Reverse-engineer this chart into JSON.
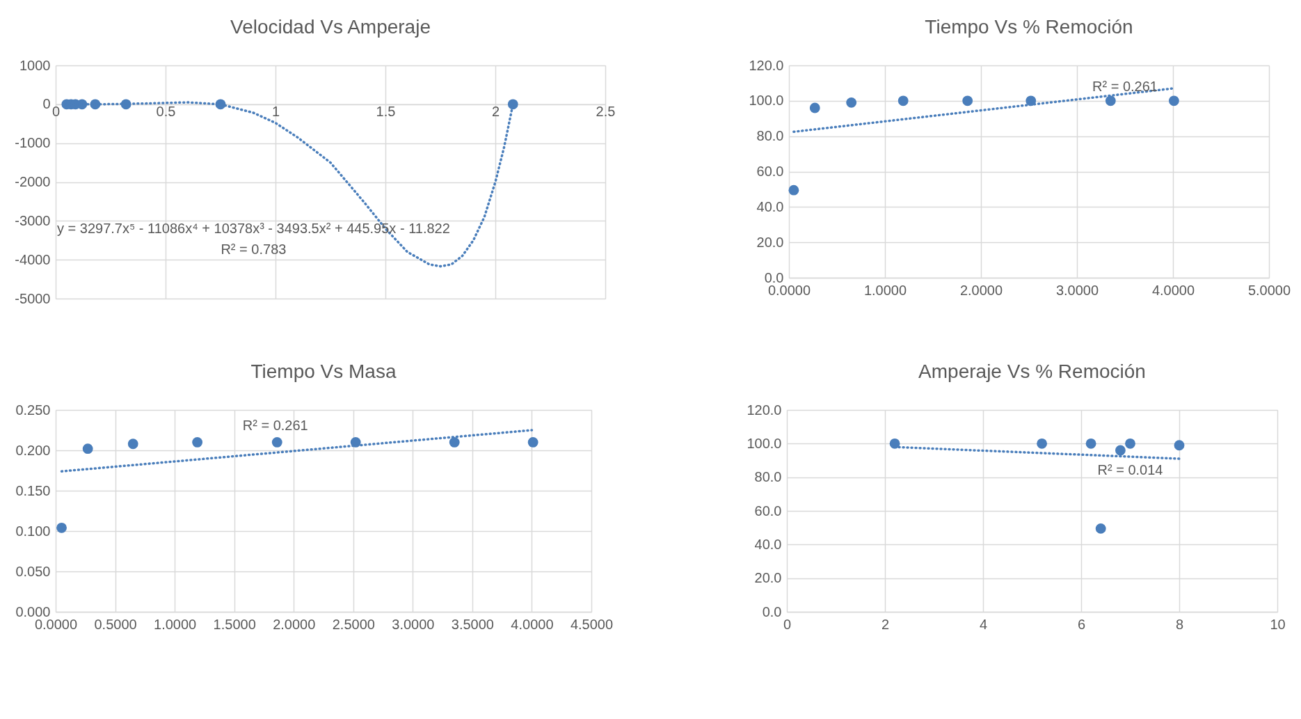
{
  "chart_data": [
    {
      "type": "scatter",
      "title": "Velocidad Vs Amperaje",
      "xlim": [
        0,
        2.5
      ],
      "xticks": [
        0,
        0.5,
        1,
        1.5,
        2,
        2.5
      ],
      "ylim": [
        -5000,
        1000
      ],
      "yticks": [
        -5000,
        -4000,
        -3000,
        -2000,
        -1000,
        0,
        1000
      ],
      "grid": true,
      "series": [
        {
          "type": "scatter",
          "marker": "circle",
          "color": "#4a7ebb",
          "x": [
            0.05,
            0.07,
            0.09,
            0.12,
            0.18,
            0.32,
            0.75,
            2.08
          ],
          "values": [
            0,
            0,
            0,
            0,
            0,
            0,
            0,
            0
          ]
        },
        {
          "type": "line",
          "color": "#4a7ebb",
          "line_style": "dotted",
          "x": [
            0.05,
            0.2,
            0.4,
            0.6,
            0.75,
            0.9,
            1.0,
            1.1,
            1.25,
            1.4,
            1.5,
            1.6,
            1.7,
            1.75,
            1.8,
            1.85,
            1.9,
            1.95,
            2.0,
            2.04,
            2.08
          ],
          "values": [
            0,
            0,
            20,
            50,
            0,
            -220,
            -480,
            -850,
            -1500,
            -2500,
            -3200,
            -3800,
            -4120,
            -4170,
            -4120,
            -3900,
            -3500,
            -2900,
            -2000,
            -1100,
            0
          ]
        }
      ],
      "annotations": [
        "y = 3297.7x⁵ - 11086x⁴ + 10378x³ - 3493.5x² + 445.95x - 11.822",
        "R² = 0.783"
      ]
    },
    {
      "type": "scatter",
      "title": "Tiempo Vs % Remoción",
      "xlim": [
        0,
        5
      ],
      "xticks": [
        {
          "value": 0,
          "label": "0.0000"
        },
        {
          "value": 1,
          "label": "1.0000"
        },
        {
          "value": 2,
          "label": "2.0000"
        },
        {
          "value": 3,
          "label": "3.0000"
        },
        {
          "value": 4,
          "label": "4.0000"
        },
        {
          "value": 5,
          "label": "5.0000"
        }
      ],
      "ylim": [
        0,
        120
      ],
      "yticks": [
        {
          "value": 0,
          "label": "0.0"
        },
        {
          "value": 20,
          "label": "20.0"
        },
        {
          "value": 40,
          "label": "40.0"
        },
        {
          "value": 60,
          "label": "60.0"
        },
        {
          "value": 80,
          "label": "80.0"
        },
        {
          "value": 100,
          "label": "100.0"
        },
        {
          "value": 120,
          "label": "120.0"
        }
      ],
      "grid": true,
      "series": [
        {
          "type": "scatter",
          "marker": "circle",
          "color": "#4a7ebb",
          "x": [
            0.05,
            0.27,
            0.65,
            1.19,
            1.86,
            2.52,
            3.35,
            4.01
          ],
          "values": [
            49.5,
            96,
            99,
            100,
            100,
            100,
            100,
            100
          ]
        },
        {
          "type": "line",
          "color": "#4a7ebb",
          "line_style": "dotted",
          "x": [
            0.05,
            4.0
          ],
          "values": [
            82.5,
            107
          ]
        }
      ],
      "annotations": [
        "R² = 0.261"
      ]
    },
    {
      "type": "scatter",
      "title": "Tiempo Vs Masa",
      "xlim": [
        0,
        4.5
      ],
      "xticks": [
        {
          "value": 0,
          "label": "0.0000"
        },
        {
          "value": 0.5,
          "label": "0.5000"
        },
        {
          "value": 1,
          "label": "1.0000"
        },
        {
          "value": 1.5,
          "label": "1.5000"
        },
        {
          "value": 2,
          "label": "2.0000"
        },
        {
          "value": 2.5,
          "label": "2.5000"
        },
        {
          "value": 3,
          "label": "3.0000"
        },
        {
          "value": 3.5,
          "label": "3.5000"
        },
        {
          "value": 4,
          "label": "4.0000"
        },
        {
          "value": 4.5,
          "label": "4.5000"
        }
      ],
      "ylim": [
        0,
        0.25
      ],
      "yticks": [
        {
          "value": 0,
          "label": "0.000"
        },
        {
          "value": 0.05,
          "label": "0.050"
        },
        {
          "value": 0.1,
          "label": "0.100"
        },
        {
          "value": 0.15,
          "label": "0.150"
        },
        {
          "value": 0.2,
          "label": "0.200"
        },
        {
          "value": 0.25,
          "label": "0.250"
        }
      ],
      "grid": true,
      "series": [
        {
          "type": "scatter",
          "marker": "circle",
          "color": "#4a7ebb",
          "x": [
            0.05,
            0.27,
            0.65,
            1.19,
            1.86,
            2.52,
            3.35,
            4.01
          ],
          "values": [
            0.104,
            0.202,
            0.208,
            0.21,
            0.21,
            0.21,
            0.21,
            0.21
          ]
        },
        {
          "type": "line",
          "color": "#4a7ebb",
          "line_style": "dotted",
          "x": [
            0.05,
            4.0
          ],
          "values": [
            0.174,
            0.225
          ]
        }
      ],
      "annotations": [
        "R² = 0.261"
      ]
    },
    {
      "type": "scatter",
      "title": "Amperaje Vs % Remoción",
      "xlim": [
        0,
        10
      ],
      "xticks": [
        0,
        2,
        4,
        6,
        8,
        10
      ],
      "ylim": [
        0,
        120
      ],
      "yticks": [
        {
          "value": 0,
          "label": "0.0"
        },
        {
          "value": 20,
          "label": "20.0"
        },
        {
          "value": 40,
          "label": "40.0"
        },
        {
          "value": 60,
          "label": "60.0"
        },
        {
          "value": 80,
          "label": "80.0"
        },
        {
          "value": 100,
          "label": "100.0"
        },
        {
          "value": 120,
          "label": "120.0"
        }
      ],
      "grid": true,
      "series": [
        {
          "type": "scatter",
          "marker": "circle",
          "color": "#4a7ebb",
          "x": [
            2.2,
            5.2,
            6.2,
            6.4,
            6.8,
            7.0,
            8.0
          ],
          "values": [
            100,
            100,
            100,
            49.5,
            96,
            100,
            99
          ]
        },
        {
          "type": "line",
          "color": "#4a7ebb",
          "line_style": "dotted",
          "x": [
            2.2,
            8.0
          ],
          "values": [
            98,
            91
          ]
        }
      ],
      "annotations": [
        "R² = 0.014"
      ]
    }
  ]
}
